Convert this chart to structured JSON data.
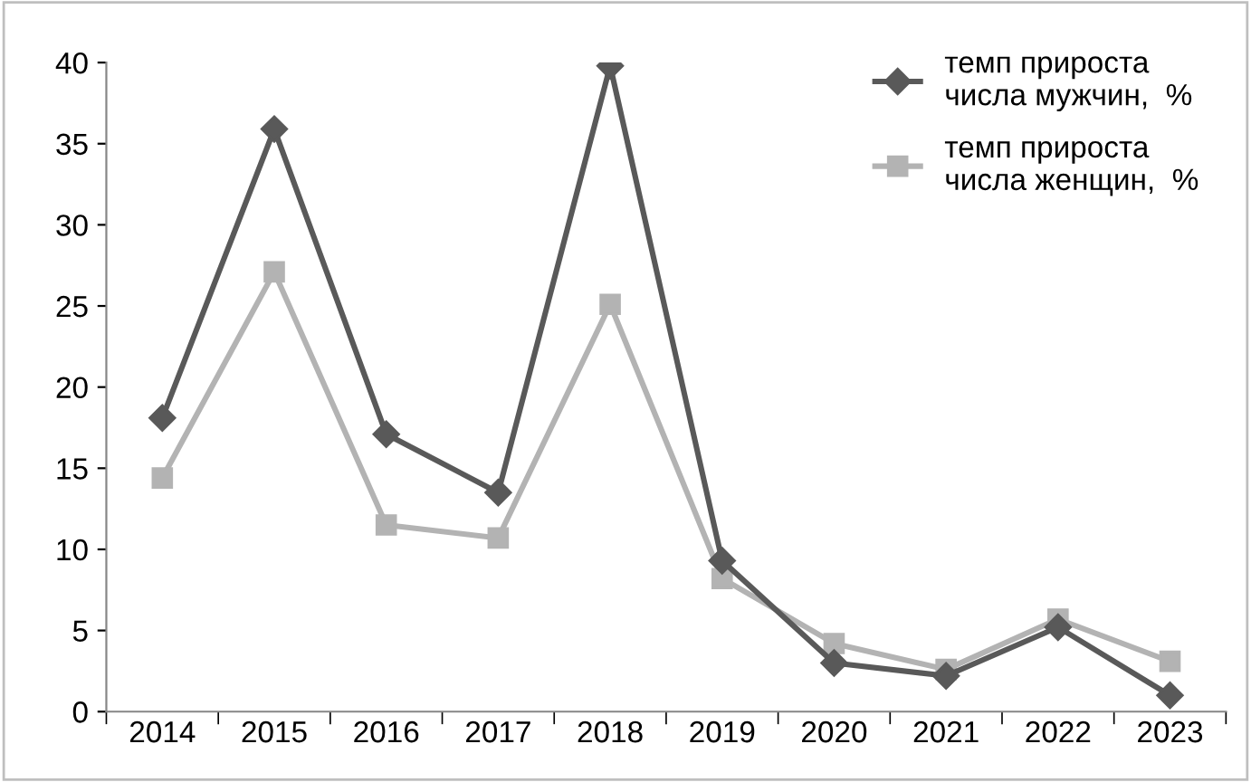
{
  "chart_data": {
    "type": "line",
    "categories": [
      "2014",
      "2015",
      "2016",
      "2017",
      "2018",
      "2019",
      "2020",
      "2021",
      "2022",
      "2023"
    ],
    "series": [
      {
        "name": "темп прироста\nчисла мужчин,  %",
        "color": "#595959",
        "marker": "diamond",
        "values": [
          18.1,
          35.9,
          17.1,
          13.5,
          39.8,
          9.3,
          3.0,
          2.2,
          5.2,
          1.0
        ]
      },
      {
        "name": "темп прироста\nчисла женщин,  %",
        "color": "#b3b3b3",
        "marker": "square",
        "values": [
          14.4,
          27.1,
          11.5,
          10.7,
          25.1,
          8.2,
          4.2,
          2.6,
          5.7,
          3.1
        ]
      }
    ],
    "ylim": [
      0,
      40
    ],
    "yticks": [
      0,
      5,
      10,
      15,
      20,
      25,
      30,
      35,
      40
    ],
    "grid": false,
    "legend": "top right",
    "line_style": "solid"
  }
}
